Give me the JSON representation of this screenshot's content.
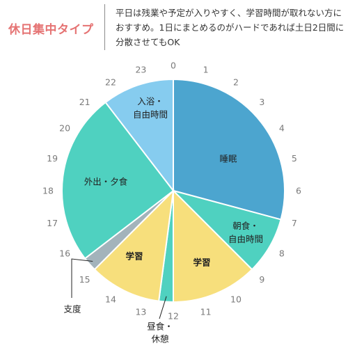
{
  "header": {
    "title": "休日集中タイプ",
    "desc_lines": [
      "平日は残業や予定が入りやすく、学習時間が取れない方に",
      "おすすめ。1日にまとめるのがハードであれば土日2日間に",
      "分散させてもOK"
    ]
  },
  "chart_data": {
    "type": "pie",
    "hours": [
      "0",
      "1",
      "2",
      "3",
      "4",
      "5",
      "6",
      "7",
      "8",
      "9",
      "10",
      "11",
      "12",
      "13",
      "14",
      "15",
      "16",
      "17",
      "18",
      "19",
      "20",
      "21",
      "22",
      "23"
    ],
    "segments": [
      {
        "lines": [
          "睡眠"
        ],
        "start": 0,
        "end": 7,
        "color": "#4ca5cf",
        "bold": false
      },
      {
        "lines": [
          "朝食・",
          "自由時間"
        ],
        "start": 7,
        "end": 9,
        "color": "#4fd1c0",
        "bold": false
      },
      {
        "lines": [
          "学習"
        ],
        "start": 9,
        "end": 12,
        "color": "#f7df7c",
        "bold": true
      },
      {
        "lines": [
          "昼食・",
          "休憩"
        ],
        "start": 12,
        "end": 12.5,
        "color": "#4fd1c0",
        "bold": false,
        "outside": true
      },
      {
        "lines": [
          "学習"
        ],
        "start": 12.5,
        "end": 15,
        "color": "#f7df7c",
        "bold": true
      },
      {
        "lines": [
          "支度"
        ],
        "start": 15,
        "end": 15.5,
        "color": "#a3b3bb",
        "bold": false,
        "outside": true
      },
      {
        "lines": [
          "外出・夕食"
        ],
        "start": 15.5,
        "end": 21.5,
        "color": "#4fd1c0",
        "bold": false
      },
      {
        "lines": [
          "入浴・",
          "自由時間"
        ],
        "start": 21.5,
        "end": 24,
        "color": "#86ccef",
        "bold": false
      }
    ]
  }
}
